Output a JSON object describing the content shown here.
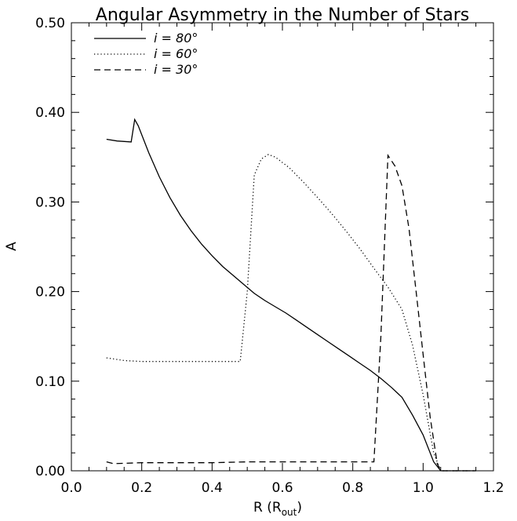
{
  "chart_data": {
    "type": "line",
    "title": "Angular Asymmetry in the Number of Stars",
    "xlabel": "R (R",
    "xlabel_sub": "out",
    "xlabel_close": ")",
    "ylabel": "A",
    "xlim": [
      0.0,
      1.2
    ],
    "ylim": [
      0.0,
      0.5
    ],
    "xticks": [
      "0.0",
      "0.2",
      "0.4",
      "0.6",
      "0.8",
      "1.0",
      "1.2"
    ],
    "yticks": [
      "0.00",
      "0.10",
      "0.20",
      "0.30",
      "0.40",
      "0.50"
    ],
    "grid": false,
    "legend_position": "top-left",
    "series": [
      {
        "name": "i = 80°",
        "style": "solid",
        "x": [
          0.1,
          0.13,
          0.17,
          0.18,
          0.19,
          0.22,
          0.25,
          0.28,
          0.31,
          0.34,
          0.37,
          0.4,
          0.43,
          0.46,
          0.49,
          0.52,
          0.55,
          0.58,
          0.61,
          0.64,
          0.67,
          0.7,
          0.73,
          0.76,
          0.79,
          0.82,
          0.85,
          0.88,
          0.91,
          0.94,
          0.97,
          1.0,
          1.03,
          1.05,
          1.1,
          1.15
        ],
        "y": [
          0.37,
          0.368,
          0.367,
          0.392,
          0.385,
          0.355,
          0.328,
          0.305,
          0.285,
          0.268,
          0.253,
          0.24,
          0.228,
          0.218,
          0.208,
          0.198,
          0.19,
          0.183,
          0.176,
          0.168,
          0.16,
          0.152,
          0.144,
          0.136,
          0.128,
          0.12,
          0.112,
          0.103,
          0.093,
          0.082,
          0.062,
          0.04,
          0.01,
          0.0,
          0.0,
          0.0
        ]
      },
      {
        "name": "i = 60°",
        "style": "dotted",
        "x": [
          0.1,
          0.15,
          0.2,
          0.25,
          0.3,
          0.35,
          0.4,
          0.45,
          0.48,
          0.5,
          0.52,
          0.54,
          0.56,
          0.58,
          0.62,
          0.66,
          0.7,
          0.74,
          0.78,
          0.82,
          0.86,
          0.9,
          0.94,
          0.97,
          1.0,
          1.03,
          1.05,
          1.1,
          1.15
        ],
        "y": [
          0.126,
          0.123,
          0.122,
          0.122,
          0.122,
          0.122,
          0.122,
          0.122,
          0.122,
          0.2,
          0.33,
          0.348,
          0.353,
          0.35,
          0.338,
          0.322,
          0.305,
          0.287,
          0.268,
          0.248,
          0.226,
          0.205,
          0.18,
          0.14,
          0.085,
          0.02,
          0.0,
          0.0,
          0.0
        ]
      },
      {
        "name": "i = 30°",
        "style": "dashed",
        "x": [
          0.1,
          0.12,
          0.2,
          0.3,
          0.4,
          0.5,
          0.6,
          0.7,
          0.8,
          0.86,
          0.88,
          0.9,
          0.92,
          0.94,
          0.96,
          0.98,
          1.0,
          1.02,
          1.04,
          1.05,
          1.1,
          1.15
        ],
        "y": [
          0.01,
          0.008,
          0.009,
          0.009,
          0.009,
          0.01,
          0.01,
          0.01,
          0.01,
          0.01,
          0.15,
          0.352,
          0.34,
          0.318,
          0.27,
          0.2,
          0.13,
          0.06,
          0.008,
          0.0,
          0.0,
          0.0
        ]
      }
    ]
  }
}
